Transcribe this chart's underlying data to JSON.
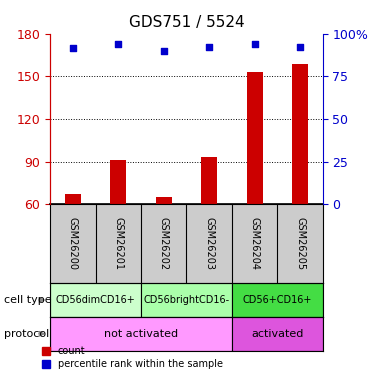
{
  "title": "GDS751 / 5524",
  "samples": [
    "GSM26200",
    "GSM26201",
    "GSM26202",
    "GSM26203",
    "GSM26204",
    "GSM26205"
  ],
  "bar_values": [
    67,
    91,
    65,
    93,
    153,
    159
  ],
  "percentile_values": [
    170,
    173,
    168,
    171,
    173,
    171
  ],
  "ylim_left": [
    60,
    180
  ],
  "ylim_right": [
    0,
    100
  ],
  "yticks_left": [
    60,
    90,
    120,
    150,
    180
  ],
  "yticks_right": [
    0,
    25,
    50,
    75,
    100
  ],
  "bar_color": "#cc0000",
  "percentile_color": "#0000cc",
  "bar_bottom": 60,
  "cell_types": [
    {
      "label": "CD56dimCD16+",
      "span": [
        0,
        2
      ],
      "color": "#ccffcc"
    },
    {
      "label": "CD56brightCD16-",
      "span": [
        2,
        4
      ],
      "color": "#aaffaa"
    },
    {
      "label": "CD56+CD16+",
      "span": [
        4,
        6
      ],
      "color": "#44dd44"
    }
  ],
  "protocols": [
    {
      "label": "not activated",
      "span": [
        0,
        4
      ],
      "color": "#ff99ff"
    },
    {
      "label": "activated",
      "span": [
        4,
        6
      ],
      "color": "#dd55dd"
    }
  ],
  "sample_bg_color": "#cccccc",
  "left_axis_color": "#cc0000",
  "right_axis_color": "#0000cc",
  "title_fontsize": 11,
  "tick_fontsize": 9,
  "sample_fontsize": 7,
  "annot_fontsize": 7,
  "legend_fontsize": 7,
  "row_label_fontsize": 8
}
